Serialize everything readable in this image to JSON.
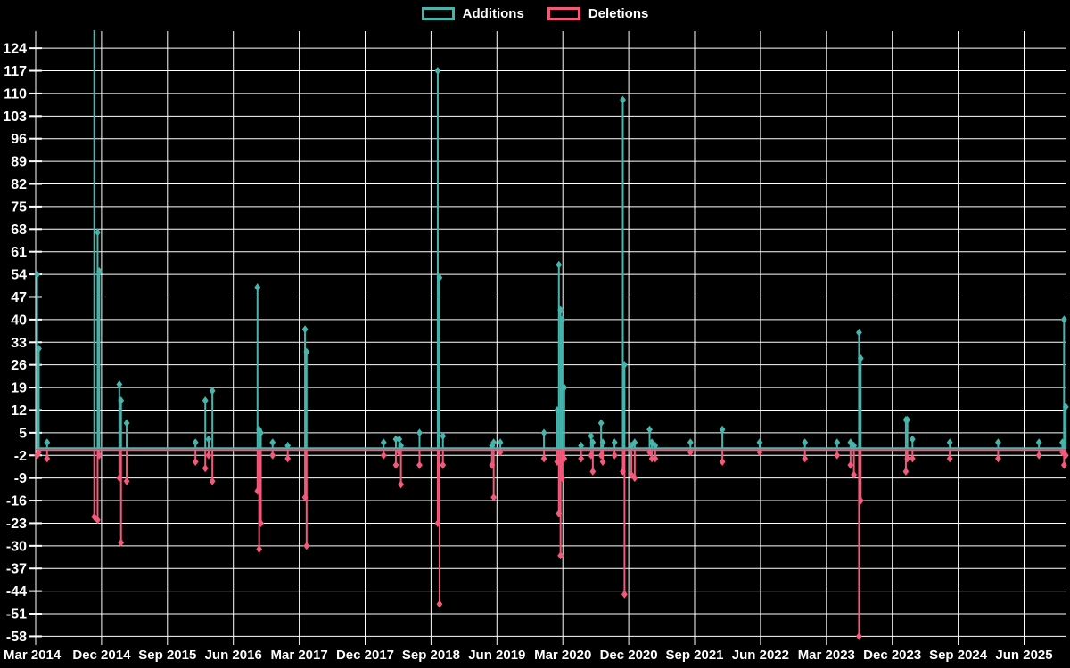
{
  "chart_data": {
    "type": "line",
    "description": "Weekly code additions and deletions spike chart on black background",
    "colors": {
      "additions": "#46b5ad",
      "deletions": "#f4587b",
      "grid": "#ffffff",
      "text": "#ffffff",
      "background": "#000000"
    },
    "legend_items": [
      {
        "key": "additions",
        "label": "Additions"
      },
      {
        "key": "deletions",
        "label": "Deletions"
      }
    ],
    "y_axis": {
      "min": -58,
      "max": 124,
      "step": 7,
      "ticks": [
        124,
        117,
        110,
        103,
        96,
        89,
        82,
        75,
        68,
        61,
        54,
        47,
        40,
        33,
        26,
        19,
        12,
        5,
        -2,
        -9,
        -16,
        -23,
        -30,
        -37,
        -44,
        -51,
        -58
      ]
    },
    "x_axis": {
      "start": "2014-03-01",
      "months_per_gridline": 9,
      "labels": [
        "Mar 2014",
        "Dec 2014",
        "Sep 2015",
        "Jun 2016",
        "Mar 2017",
        "Dec 2017",
        "Sep 2018",
        "Jun 2019",
        "Mar 2020",
        "Dec 2020",
        "Sep 2021",
        "Jun 2022",
        "Mar 2023",
        "Dec 2023",
        "Sep 2024",
        "Jun 2025"
      ]
    },
    "events": [
      {
        "date": "2014-03-07",
        "additions": 54,
        "deletions": 2
      },
      {
        "date": "2014-03-14",
        "additions": 31,
        "deletions": 1
      },
      {
        "date": "2014-04-18",
        "additions": 2,
        "deletions": 3
      },
      {
        "date": "2014-11-01",
        "additions": 140,
        "deletions": 21
      },
      {
        "date": "2014-11-15",
        "additions": 67,
        "deletions": 22
      },
      {
        "date": "2014-11-22",
        "additions": 55,
        "deletions": 2
      },
      {
        "date": "2015-02-14",
        "additions": 20,
        "deletions": 9
      },
      {
        "date": "2015-02-21",
        "additions": 15,
        "deletions": 29
      },
      {
        "date": "2015-03-14",
        "additions": 8,
        "deletions": 10
      },
      {
        "date": "2015-12-26",
        "additions": 2,
        "deletions": 4
      },
      {
        "date": "2016-02-06",
        "additions": 15,
        "deletions": 6
      },
      {
        "date": "2016-02-20",
        "additions": 3,
        "deletions": 2
      },
      {
        "date": "2016-03-05",
        "additions": 18,
        "deletions": 10
      },
      {
        "date": "2016-09-10",
        "additions": 50,
        "deletions": 13
      },
      {
        "date": "2016-09-17",
        "additions": 6,
        "deletions": 31
      },
      {
        "date": "2016-09-24",
        "additions": 5,
        "deletions": 23
      },
      {
        "date": "2016-11-12",
        "additions": 2,
        "deletions": 2
      },
      {
        "date": "2017-01-14",
        "additions": 1,
        "deletions": 3
      },
      {
        "date": "2017-03-25",
        "additions": 37,
        "deletions": 15
      },
      {
        "date": "2017-04-01",
        "additions": 30,
        "deletions": 30
      },
      {
        "date": "2018-02-17",
        "additions": 2,
        "deletions": 2
      },
      {
        "date": "2018-04-07",
        "additions": 3,
        "deletions": 5
      },
      {
        "date": "2018-04-21",
        "additions": 3,
        "deletions": 1
      },
      {
        "date": "2018-04-28",
        "additions": 1,
        "deletions": 11
      },
      {
        "date": "2018-07-14",
        "additions": 5,
        "deletions": 5
      },
      {
        "date": "2018-09-29",
        "additions": 117,
        "deletions": 23
      },
      {
        "date": "2018-10-06",
        "additions": 53,
        "deletions": 48
      },
      {
        "date": "2018-10-20",
        "additions": 4,
        "deletions": 5
      },
      {
        "date": "2019-05-11",
        "additions": 1,
        "deletions": 5
      },
      {
        "date": "2019-05-18",
        "additions": 2,
        "deletions": 15
      },
      {
        "date": "2019-06-15",
        "additions": 2,
        "deletions": 1
      },
      {
        "date": "2019-12-14",
        "additions": 5,
        "deletions": 3
      },
      {
        "date": "2020-02-08",
        "additions": 12,
        "deletions": 4
      },
      {
        "date": "2020-02-15",
        "additions": 57,
        "deletions": 20
      },
      {
        "date": "2020-02-22",
        "additions": 43,
        "deletions": 33
      },
      {
        "date": "2020-02-29",
        "additions": 40,
        "deletions": 9
      },
      {
        "date": "2020-03-07",
        "additions": 19,
        "deletions": 3
      },
      {
        "date": "2020-05-16",
        "additions": 1,
        "deletions": 3
      },
      {
        "date": "2020-06-27",
        "additions": 4,
        "deletions": 2
      },
      {
        "date": "2020-07-04",
        "additions": 2,
        "deletions": 7
      },
      {
        "date": "2020-08-08",
        "additions": 8,
        "deletions": 2
      },
      {
        "date": "2020-08-15",
        "additions": 2,
        "deletions": 4
      },
      {
        "date": "2020-10-03",
        "additions": 2,
        "deletions": 2
      },
      {
        "date": "2020-11-07",
        "additions": 108,
        "deletions": 7
      },
      {
        "date": "2020-11-14",
        "additions": 26,
        "deletions": 45
      },
      {
        "date": "2020-12-12",
        "additions": 1,
        "deletions": 8
      },
      {
        "date": "2020-12-26",
        "additions": 2,
        "deletions": 9
      },
      {
        "date": "2021-02-27",
        "additions": 6,
        "deletions": 1
      },
      {
        "date": "2021-03-06",
        "additions": 2,
        "deletions": 3
      },
      {
        "date": "2021-03-20",
        "additions": 1,
        "deletions": 3
      },
      {
        "date": "2021-08-14",
        "additions": 2,
        "deletions": 1
      },
      {
        "date": "2021-12-25",
        "additions": 6,
        "deletions": 4
      },
      {
        "date": "2022-05-28",
        "additions": 2,
        "deletions": 1
      },
      {
        "date": "2022-12-03",
        "additions": 2,
        "deletions": 3
      },
      {
        "date": "2023-04-15",
        "additions": 2,
        "deletions": 2
      },
      {
        "date": "2023-06-10",
        "additions": 2,
        "deletions": 5
      },
      {
        "date": "2023-06-24",
        "additions": 1,
        "deletions": 8
      },
      {
        "date": "2023-07-15",
        "additions": 36,
        "deletions": 58
      },
      {
        "date": "2023-07-22",
        "additions": 28,
        "deletions": 16
      },
      {
        "date": "2024-01-27",
        "additions": 9,
        "deletions": 7
      },
      {
        "date": "2024-02-03",
        "additions": 9,
        "deletions": 3
      },
      {
        "date": "2024-02-24",
        "additions": 3,
        "deletions": 3
      },
      {
        "date": "2024-07-27",
        "additions": 2,
        "deletions": 3
      },
      {
        "date": "2025-02-15",
        "additions": 2,
        "deletions": 3
      },
      {
        "date": "2025-08-02",
        "additions": 2,
        "deletions": 2
      },
      {
        "date": "2025-11-08",
        "additions": 2,
        "deletions": 1
      },
      {
        "date": "2025-11-15",
        "additions": 40,
        "deletions": 5
      },
      {
        "date": "2025-11-22",
        "additions": 13,
        "deletions": 2
      }
    ]
  }
}
